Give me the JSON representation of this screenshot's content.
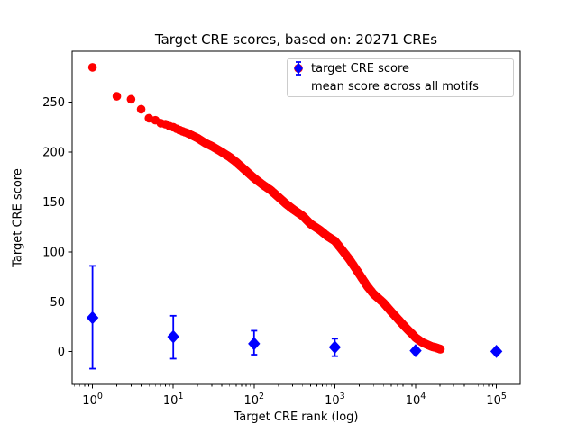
{
  "chart_data": {
    "type": "scatter",
    "title": "Target CRE scores, based on: 20271 CREs",
    "xlabel": "Target CRE rank (log)",
    "ylabel": "Target CRE score",
    "x_scale": "log",
    "x_tick_exponents": [
      0,
      1,
      2,
      3,
      4,
      5
    ],
    "y_ticks": [
      0,
      50,
      100,
      150,
      200,
      250
    ],
    "xlim_log10": [
      -0.25,
      5.29
    ],
    "ylim": [
      -32.5,
      301
    ],
    "grid": false,
    "legend_position": "upper right",
    "n_cres": 20271,
    "series": [
      {
        "name": "target CRE score",
        "color": "#ff0000",
        "marker": "circle",
        "anchor_points": [
          [
            1,
            285
          ],
          [
            2,
            256
          ],
          [
            3,
            253
          ],
          [
            4,
            243
          ],
          [
            5,
            234
          ],
          [
            6,
            232
          ],
          [
            7,
            229
          ],
          [
            8,
            228
          ],
          [
            9,
            226
          ],
          [
            10,
            225
          ],
          [
            12,
            222
          ],
          [
            15,
            219
          ],
          [
            20,
            214
          ],
          [
            25,
            209
          ],
          [
            30,
            206
          ],
          [
            40,
            200
          ],
          [
            50,
            195
          ],
          [
            60,
            190
          ],
          [
            80,
            181
          ],
          [
            100,
            174
          ],
          [
            130,
            167
          ],
          [
            160,
            162
          ],
          [
            200,
            155
          ],
          [
            250,
            148
          ],
          [
            300,
            143
          ],
          [
            400,
            136
          ],
          [
            500,
            128
          ],
          [
            650,
            122
          ],
          [
            800,
            116
          ],
          [
            1000,
            111
          ],
          [
            1200,
            103
          ],
          [
            1500,
            93
          ],
          [
            2000,
            78
          ],
          [
            2500,
            66
          ],
          [
            3000,
            58
          ],
          [
            4000,
            49
          ],
          [
            5000,
            40
          ],
          [
            6000,
            33
          ],
          [
            7000,
            27
          ],
          [
            8000,
            22
          ],
          [
            9000,
            18
          ],
          [
            10000,
            14
          ],
          [
            12000,
            9.5
          ],
          [
            14000,
            7
          ],
          [
            16000,
            5
          ],
          [
            18000,
            4
          ],
          [
            20271,
            2.5
          ]
        ]
      },
      {
        "name": "mean score across all motifs",
        "color": "#0000ff",
        "marker": "diamond",
        "points": [
          {
            "x": 1,
            "y": 34,
            "err_minus": 51,
            "err_plus": 52
          },
          {
            "x": 10,
            "y": 15,
            "err_minus": 22,
            "err_plus": 21
          },
          {
            "x": 100,
            "y": 8,
            "err_minus": 11,
            "err_plus": 13
          },
          {
            "x": 1000,
            "y": 4.5,
            "err_minus": 9,
            "err_plus": 8.5
          },
          {
            "x": 10000,
            "y": 1,
            "err_minus": 2,
            "err_plus": 2
          },
          {
            "x": 100000,
            "y": 0.3,
            "err_minus": 1,
            "err_plus": 1
          }
        ]
      }
    ]
  }
}
